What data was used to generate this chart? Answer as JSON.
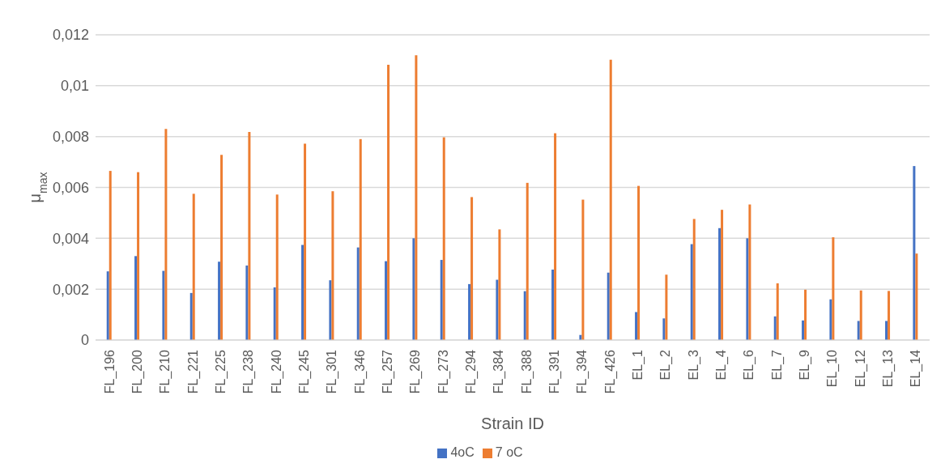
{
  "chart_data": {
    "type": "bar",
    "xlabel": "Strain ID",
    "ylabel": "μ$_{max}$",
    "categories": [
      "FL_196",
      "FL_200",
      "FL_210",
      "FL_221",
      "FL_225",
      "FL_238",
      "FL_240",
      "FL_245",
      "FL_301",
      "FL_346",
      "FL_257",
      "FL_269",
      "FL_273",
      "FL_294",
      "FL_384",
      "FL_388",
      "FL_391",
      "FL_394",
      "FL_426",
      "EL_1",
      "EL_2",
      "EL_3",
      "EL_4",
      "EL_6",
      "EL_7",
      "EL_9",
      "EL_10",
      "EL_12",
      "EL_13",
      "EL_14"
    ],
    "series": [
      {
        "name": "4oC",
        "color": "#4472c4",
        "values": [
          0.0027,
          0.0033,
          0.00272,
          0.00185,
          0.00308,
          0.00293,
          0.00207,
          0.00374,
          0.00235,
          0.00364,
          0.0031,
          0.004,
          0.00315,
          0.0022,
          0.00237,
          0.00192,
          0.00277,
          0.0002,
          0.00265,
          0.0011,
          0.00085,
          0.00377,
          0.0044,
          0.004,
          0.00093,
          0.00077,
          0.0016,
          0.00075,
          0.00075,
          0.00684
        ]
      },
      {
        "name": "7 oC",
        "color": "#ed7d31",
        "values": [
          0.00665,
          0.0066,
          0.0083,
          0.00575,
          0.00728,
          0.00818,
          0.00572,
          0.00772,
          0.00585,
          0.0079,
          0.01082,
          0.0112,
          0.00797,
          0.00562,
          0.00435,
          0.00618,
          0.00813,
          0.00552,
          0.01102,
          0.00606,
          0.00257,
          0.00476,
          0.00512,
          0.00533,
          0.00223,
          0.00198,
          0.00404,
          0.00195,
          0.00193,
          0.0034
        ]
      }
    ],
    "ylim": [
      0,
      0.012
    ],
    "yticks": [
      {
        "value": 0,
        "label": "0"
      },
      {
        "value": 0.002,
        "label": "0,002"
      },
      {
        "value": 0.004,
        "label": "0,004"
      },
      {
        "value": 0.006,
        "label": "0,006"
      },
      {
        "value": 0.008,
        "label": "0,008"
      },
      {
        "value": 0.01,
        "label": "0,01"
      },
      {
        "value": 0.012,
        "label": "0,012"
      }
    ],
    "grid": "y",
    "legend": "bottom"
  }
}
